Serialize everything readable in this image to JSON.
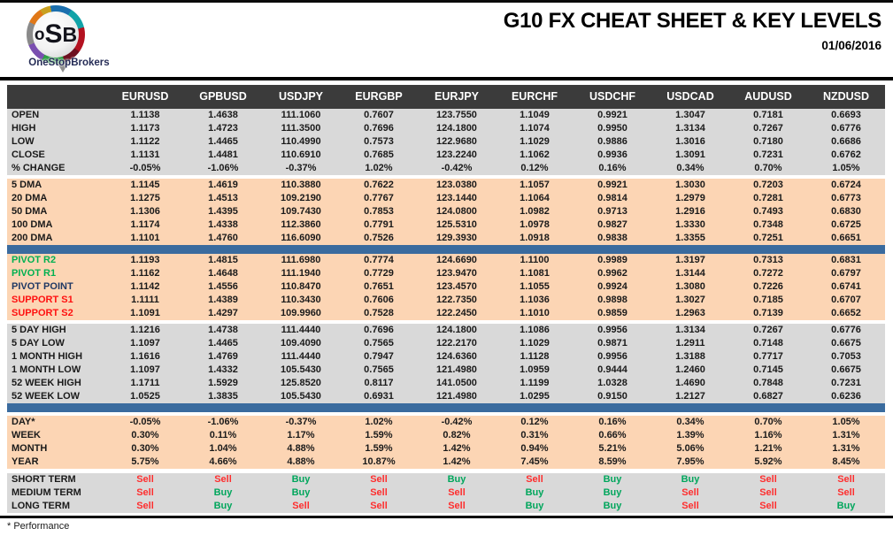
{
  "header": {
    "logo": {
      "monogram_o": "o",
      "monogram_s": "S",
      "monogram_b": "B",
      "brand": "OneStopBrokers"
    },
    "title": "G10 FX CHEAT SHEET & KEY LEVELS",
    "date": "01/06/2016"
  },
  "colors": {
    "header_row_bg": "#3b3b3b",
    "section_gray": "#d9d9d9",
    "section_peach": "#fcd5b4",
    "divider_blue": "#3a6b9e",
    "pivot_green": "#00b050",
    "support_red": "#fe1010",
    "pivot_navy": "#1f3864",
    "buy_green": "#00a65c",
    "sell_red": "#fe2e2e"
  },
  "table": {
    "columns": [
      "EURUSD",
      "GPBUSD",
      "USDJPY",
      "EURGBP",
      "EURJPY",
      "EURCHF",
      "USDCHF",
      "USDCAD",
      "AUDUSD",
      "NZDUSD"
    ],
    "sections": [
      {
        "name": "ohlc",
        "bg": "gray",
        "before": "",
        "rows": [
          {
            "label": "OPEN",
            "values": [
              "1.1138",
              "1.4638",
              "111.1060",
              "0.7607",
              "123.7550",
              "1.1049",
              "0.9921",
              "1.3047",
              "0.7181",
              "0.6693"
            ]
          },
          {
            "label": "HIGH",
            "values": [
              "1.1173",
              "1.4723",
              "111.3500",
              "0.7696",
              "124.1800",
              "1.1074",
              "0.9950",
              "1.3134",
              "0.7267",
              "0.6776"
            ]
          },
          {
            "label": "LOW",
            "values": [
              "1.1122",
              "1.4465",
              "110.4990",
              "0.7573",
              "122.9680",
              "1.1029",
              "0.9886",
              "1.3016",
              "0.7180",
              "0.6686"
            ]
          },
          {
            "label": "CLOSE",
            "values": [
              "1.1131",
              "1.4481",
              "110.6910",
              "0.7685",
              "123.2240",
              "1.1062",
              "0.9936",
              "1.3091",
              "0.7231",
              "0.6762"
            ]
          },
          {
            "label": "% CHANGE",
            "values": [
              "-0.05%",
              "-1.06%",
              "-0.37%",
              "1.02%",
              "-0.42%",
              "0.12%",
              "0.16%",
              "0.34%",
              "0.70%",
              "1.05%"
            ]
          }
        ]
      },
      {
        "name": "dma",
        "bg": "peach",
        "before": "gap",
        "rows": [
          {
            "label": "5 DMA",
            "values": [
              "1.1145",
              "1.4619",
              "110.3880",
              "0.7622",
              "123.0380",
              "1.1057",
              "0.9921",
              "1.3030",
              "0.7203",
              "0.6724"
            ]
          },
          {
            "label": "20 DMA",
            "values": [
              "1.1275",
              "1.4513",
              "109.2190",
              "0.7767",
              "123.1440",
              "1.1064",
              "0.9814",
              "1.2979",
              "0.7281",
              "0.6773"
            ]
          },
          {
            "label": "50 DMA",
            "values": [
              "1.1306",
              "1.4395",
              "109.7430",
              "0.7853",
              "124.0800",
              "1.0982",
              "0.9713",
              "1.2916",
              "0.7493",
              "0.6830"
            ]
          },
          {
            "label": "100 DMA",
            "values": [
              "1.1174",
              "1.4338",
              "112.3860",
              "0.7791",
              "125.5310",
              "1.0978",
              "0.9827",
              "1.3330",
              "0.7348",
              "0.6725"
            ]
          },
          {
            "label": "200 DMA",
            "values": [
              "1.1101",
              "1.4760",
              "116.6090",
              "0.7526",
              "129.3930",
              "1.0918",
              "0.9838",
              "1.3355",
              "0.7251",
              "0.6651"
            ]
          }
        ]
      },
      {
        "name": "pivots",
        "bg": "peach",
        "before": "bar",
        "rows": [
          {
            "label": "PIVOT R2",
            "label_color": "green",
            "values": [
              "1.1193",
              "1.4815",
              "111.6980",
              "0.7774",
              "124.6690",
              "1.1100",
              "0.9989",
              "1.3197",
              "0.7313",
              "0.6831"
            ]
          },
          {
            "label": "PIVOT R1",
            "label_color": "green",
            "values": [
              "1.1162",
              "1.4648",
              "111.1940",
              "0.7729",
              "123.9470",
              "1.1081",
              "0.9962",
              "1.3144",
              "0.7272",
              "0.6797"
            ]
          },
          {
            "label": "PIVOT POINT",
            "label_color": "navy",
            "values": [
              "1.1142",
              "1.4556",
              "110.8470",
              "0.7651",
              "123.4570",
              "1.1055",
              "0.9924",
              "1.3080",
              "0.7226",
              "0.6741"
            ]
          },
          {
            "label": "SUPPORT S1",
            "label_color": "red",
            "values": [
              "1.1111",
              "1.4389",
              "110.3430",
              "0.7606",
              "122.7350",
              "1.1036",
              "0.9898",
              "1.3027",
              "0.7185",
              "0.6707"
            ]
          },
          {
            "label": "SUPPORT S2",
            "label_color": "red",
            "values": [
              "1.1091",
              "1.4297",
              "109.9960",
              "0.7528",
              "122.2450",
              "1.1010",
              "0.9859",
              "1.2963",
              "0.7139",
              "0.6652"
            ]
          }
        ]
      },
      {
        "name": "ranges",
        "bg": "gray",
        "before": "gap",
        "rows": [
          {
            "label": "5 DAY HIGH",
            "values": [
              "1.1216",
              "1.4738",
              "111.4440",
              "0.7696",
              "124.1800",
              "1.1086",
              "0.9956",
              "1.3134",
              "0.7267",
              "0.6776"
            ]
          },
          {
            "label": "5 DAY LOW",
            "values": [
              "1.1097",
              "1.4465",
              "109.4090",
              "0.7565",
              "122.2170",
              "1.1029",
              "0.9871",
              "1.2911",
              "0.7148",
              "0.6675"
            ]
          },
          {
            "label": "1 MONTH HIGH",
            "values": [
              "1.1616",
              "1.4769",
              "111.4440",
              "0.7947",
              "124.6360",
              "1.1128",
              "0.9956",
              "1.3188",
              "0.7717",
              "0.7053"
            ]
          },
          {
            "label": "1 MONTH LOW",
            "values": [
              "1.1097",
              "1.4332",
              "105.5430",
              "0.7565",
              "121.4980",
              "1.0959",
              "0.9444",
              "1.2460",
              "0.7145",
              "0.6675"
            ]
          },
          {
            "label": "52 WEEK HIGH",
            "values": [
              "1.1711",
              "1.5929",
              "125.8520",
              "0.8117",
              "141.0500",
              "1.1199",
              "1.0328",
              "1.4690",
              "0.7848",
              "0.7231"
            ]
          },
          {
            "label": "52 WEEK LOW",
            "values": [
              "1.0525",
              "1.3835",
              "105.5430",
              "0.6931",
              "121.4980",
              "1.0295",
              "0.9150",
              "1.2127",
              "0.6827",
              "0.6236"
            ]
          }
        ]
      },
      {
        "name": "performance",
        "bg": "peach",
        "before": "bar+gap",
        "rows": [
          {
            "label": "DAY*",
            "values": [
              "-0.05%",
              "-1.06%",
              "-0.37%",
              "1.02%",
              "-0.42%",
              "0.12%",
              "0.16%",
              "0.34%",
              "0.70%",
              "1.05%"
            ]
          },
          {
            "label": "WEEK",
            "values": [
              "0.30%",
              "0.11%",
              "1.17%",
              "1.59%",
              "0.82%",
              "0.31%",
              "0.66%",
              "1.39%",
              "1.16%",
              "1.31%"
            ]
          },
          {
            "label": "MONTH",
            "values": [
              "0.30%",
              "1.04%",
              "4.88%",
              "1.59%",
              "1.42%",
              "0.94%",
              "5.21%",
              "5.06%",
              "1.21%",
              "1.31%"
            ]
          },
          {
            "label": "YEAR",
            "values": [
              "5.75%",
              "4.66%",
              "4.88%",
              "10.87%",
              "1.42%",
              "7.45%",
              "8.59%",
              "7.95%",
              "5.92%",
              "8.45%"
            ]
          }
        ]
      },
      {
        "name": "signals",
        "bg": "gray",
        "before": "gap5",
        "signal": true,
        "rows": [
          {
            "label": "SHORT TERM",
            "values": [
              "Sell",
              "Sell",
              "Buy",
              "Sell",
              "Buy",
              "Sell",
              "Buy",
              "Buy",
              "Sell",
              "Sell"
            ]
          },
          {
            "label": "MEDIUM TERM",
            "values": [
              "Sell",
              "Buy",
              "Buy",
              "Sell",
              "Sell",
              "Buy",
              "Buy",
              "Sell",
              "Sell",
              "Sell"
            ]
          },
          {
            "label": "LONG TERM",
            "values": [
              "Sell",
              "Buy",
              "Sell",
              "Sell",
              "Sell",
              "Buy",
              "Buy",
              "Sell",
              "Sell",
              "Buy"
            ]
          }
        ]
      }
    ]
  },
  "footnote": "* Performance"
}
